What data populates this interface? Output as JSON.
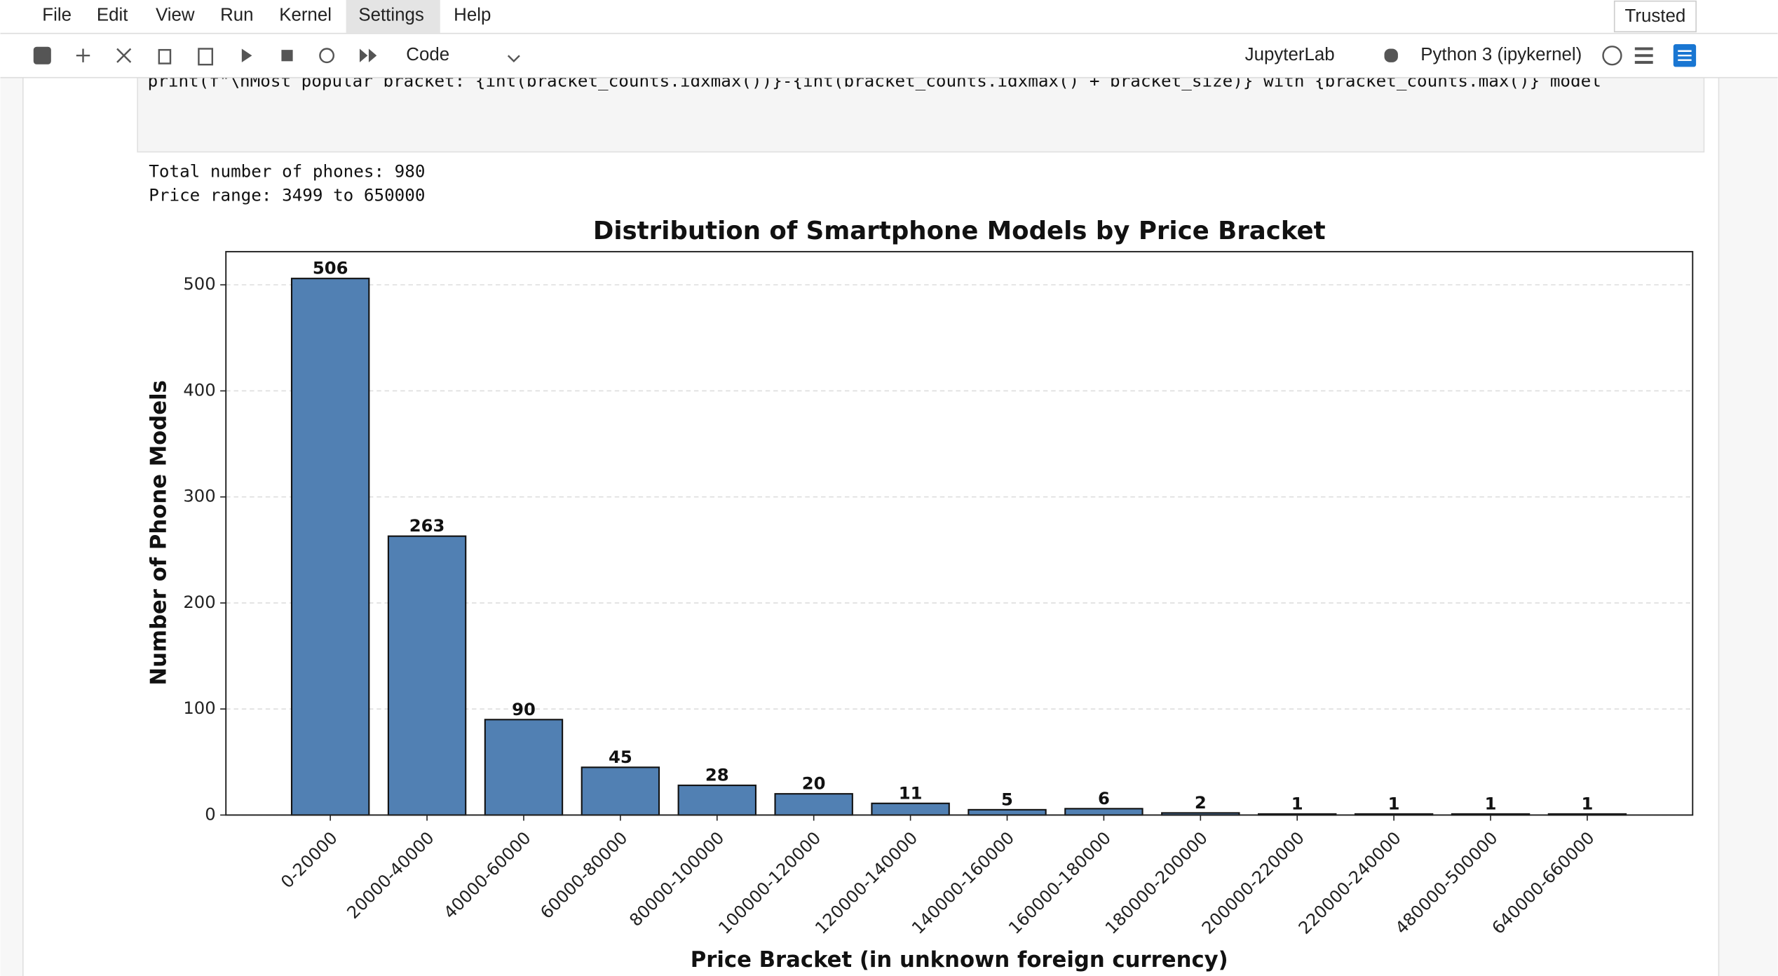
{
  "menu": [
    "File",
    "Edit",
    "View",
    "Run",
    "Kernel",
    "Settings",
    "Help"
  ],
  "trusted": "Trusted",
  "toolbar": {
    "cell_type": "Code",
    "kernel_link": "JupyterLab",
    "kernel": "Python 3 (ipykernel)"
  },
  "code": "print(f\"\\nMost popular bracket: {int(bracket_counts.idxmax())}-{int(bracket_counts.idxmax() + bracket_size)} with {bracket_counts.max()} model",
  "output": [
    "Total number of phones: 980",
    "Price range: 3499 to 650000"
  ],
  "chart_data": {
    "type": "bar",
    "title": "Distribution of Smartphone Models by Price Bracket",
    "x_label": "Price Bracket (in unknown foreign currency)",
    "y_label": "Number of Phone Models",
    "categories": [
      "0-20000",
      "20000-40000",
      "40000-60000",
      "60000-80000",
      "80000-100000",
      "100000-120000",
      "120000-140000",
      "140000-160000",
      "160000-180000",
      "180000-200000",
      "200000-220000",
      "220000-240000",
      "480000-500000",
      "640000-660000"
    ],
    "values": [
      506,
      263,
      90,
      45,
      28,
      20,
      11,
      5,
      6,
      2,
      1,
      1,
      1,
      1
    ],
    "color": "#5180b3",
    "ylim": [
      0,
      531.3
    ],
    "yticks": [
      0,
      100,
      200,
      300,
      400,
      500
    ],
    "grid": true
  }
}
